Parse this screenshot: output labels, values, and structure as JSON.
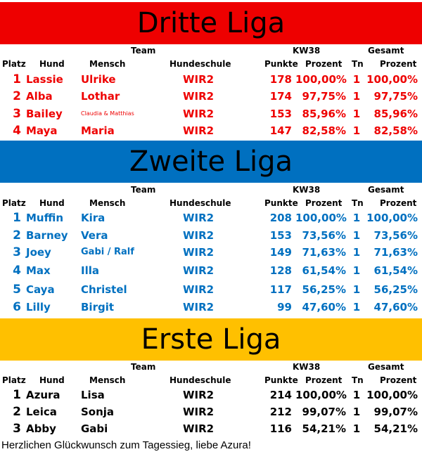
{
  "colors": {
    "red": "#ee0000",
    "blue": "#0070c0",
    "yellow": "#ffc000",
    "black": "#000000"
  },
  "headers": {
    "team": "Team",
    "week": "KW38",
    "total": "Gesamt",
    "platz": "Platz",
    "hund": "Hund",
    "mensch": "Mensch",
    "hundeschule": "Hundeschule",
    "punkte": "Punkte",
    "prozent": "Prozent",
    "tn": "Tn",
    "gesamt_prozent": "Prozent"
  },
  "leagues": [
    {
      "title": "Dritte Liga",
      "rows": [
        {
          "platz": "1",
          "hund": "Lassie",
          "mensch": "Ulrike",
          "schule": "WIR2",
          "punkte": "178",
          "prozent": "100,00%",
          "tn": "1",
          "gesamt": "100,00%"
        },
        {
          "platz": "2",
          "hund": "Alba",
          "mensch": "Lothar",
          "schule": "WIR2",
          "punkte": "174",
          "prozent": "97,75%",
          "tn": "1",
          "gesamt": "97,75%"
        },
        {
          "platz": "3",
          "hund": "Bailey",
          "mensch": "Claudia & Matthias",
          "schule": "WIR2",
          "punkte": "153",
          "prozent": "85,96%",
          "tn": "1",
          "gesamt": "85,96%"
        },
        {
          "platz": "4",
          "hund": "Maya",
          "mensch": "Maria",
          "schule": "WIR2",
          "punkte": "147",
          "prozent": "82,58%",
          "tn": "1",
          "gesamt": "82,58%"
        }
      ]
    },
    {
      "title": "Zweite Liga",
      "rows": [
        {
          "platz": "1",
          "hund": "Muffin",
          "mensch": "Kira",
          "schule": "WIR2",
          "punkte": "208",
          "prozent": "100,00%",
          "tn": "1",
          "gesamt": "100,00%"
        },
        {
          "platz": "2",
          "hund": "Barney",
          "mensch": "Vera",
          "schule": "WIR2",
          "punkte": "153",
          "prozent": "73,56%",
          "tn": "1",
          "gesamt": "73,56%"
        },
        {
          "platz": "3",
          "hund": "Joey",
          "mensch": "Gabi / Ralf",
          "schule": "WIR2",
          "punkte": "149",
          "prozent": "71,63%",
          "tn": "1",
          "gesamt": "71,63%"
        },
        {
          "platz": "4",
          "hund": "Max",
          "mensch": "Illa",
          "schule": "WIR2",
          "punkte": "128",
          "prozent": "61,54%",
          "tn": "1",
          "gesamt": "61,54%"
        },
        {
          "platz": "5",
          "hund": "Caya",
          "mensch": "Christel",
          "schule": "WIR2",
          "punkte": "117",
          "prozent": "56,25%",
          "tn": "1",
          "gesamt": "56,25%"
        },
        {
          "platz": "6",
          "hund": "Lilly",
          "mensch": "Birgit",
          "schule": "WIR2",
          "punkte": "99",
          "prozent": "47,60%",
          "tn": "1",
          "gesamt": "47,60%"
        }
      ]
    },
    {
      "title": "Erste Liga",
      "rows": [
        {
          "platz": "1",
          "hund": "Azura",
          "mensch": "Lisa",
          "schule": "WIR2",
          "punkte": "214",
          "prozent": "100,00%",
          "tn": "1",
          "gesamt": "100,00%"
        },
        {
          "platz": "2",
          "hund": "Leica",
          "mensch": "Sonja",
          "schule": "WIR2",
          "punkte": "212",
          "prozent": "99,07%",
          "tn": "1",
          "gesamt": "99,07%"
        },
        {
          "platz": "3",
          "hund": "Abby",
          "mensch": "Gabi",
          "schule": "WIR2",
          "punkte": "116",
          "prozent": "54,21%",
          "tn": "1",
          "gesamt": "54,21%"
        }
      ]
    }
  ],
  "footer": "Herzlichen Glückwunsch zum Tagessieg, liebe Azura!"
}
